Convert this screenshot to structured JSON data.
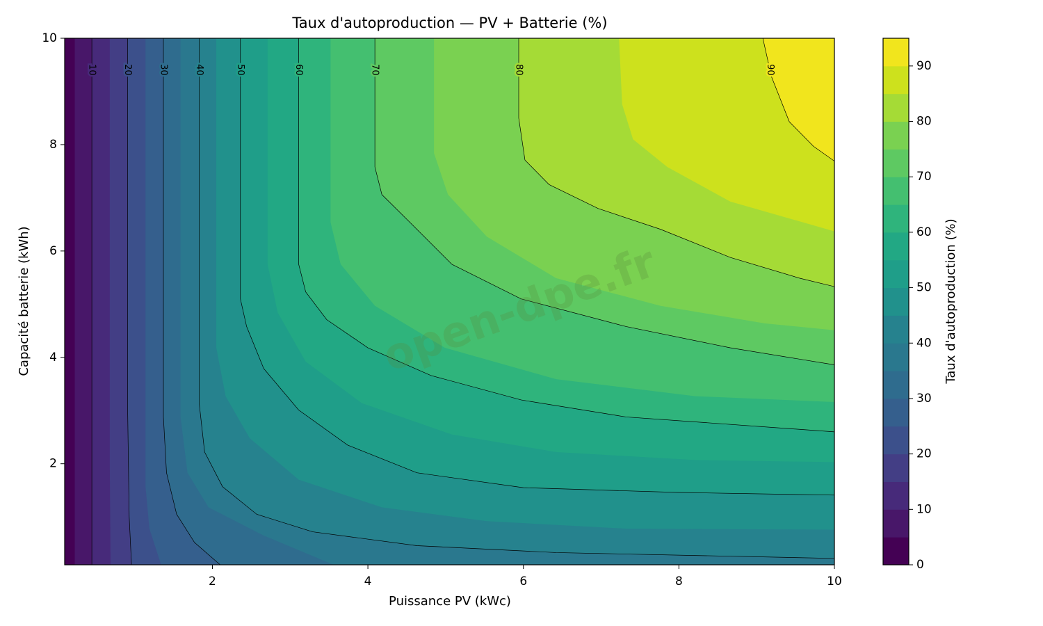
{
  "chart_data": {
    "type": "contourf",
    "title": "Taux d'autoproduction — PV + Batterie (%)",
    "xlabel": "Puissance PV (kWc)",
    "ylabel": "Capacité batterie (kWh)",
    "watermark": "open-dpe.fr",
    "xlim": [
      0.1,
      10
    ],
    "ylim": [
      0.1,
      10
    ],
    "xticks": [
      2,
      4,
      6,
      8,
      10
    ],
    "yticks": [
      2,
      4,
      6,
      8,
      10
    ],
    "contours": [
      {
        "level": 5,
        "line": false,
        "x": [
          0.23,
          0.23
        ],
        "y": [
          10,
          0.1
        ]
      },
      {
        "level": 10,
        "line": true,
        "x": [
          0.45,
          0.45
        ],
        "y": [
          10,
          0.1
        ]
      },
      {
        "level": 15,
        "line": false,
        "x": [
          0.68,
          0.68,
          0.69
        ],
        "y": [
          10,
          2,
          0.1
        ]
      },
      {
        "level": 20,
        "line": true,
        "x": [
          0.91,
          0.91,
          0.93,
          0.96
        ],
        "y": [
          10,
          3,
          1,
          0.1
        ]
      },
      {
        "level": 25,
        "line": false,
        "x": [
          1.14,
          1.14,
          1.19,
          1.34
        ],
        "y": [
          10,
          1.57,
          0.78,
          0.1
        ]
      },
      {
        "level": 30,
        "line": true,
        "x": [
          1.37,
          1.37,
          1.41,
          1.54,
          1.77,
          2.1
        ],
        "y": [
          10,
          2.88,
          1.83,
          1.05,
          0.52,
          0.1
        ]
      },
      {
        "level": 35,
        "line": false,
        "x": [
          1.59,
          1.59,
          1.68,
          1.95,
          2.66,
          3.56
        ],
        "y": [
          10,
          2.88,
          1.83,
          1.18,
          0.65,
          0.1
        ]
      },
      {
        "level": 40,
        "line": true,
        "x": [
          1.83,
          1.83,
          1.9,
          2.13,
          2.57,
          3.29,
          4.63,
          6.42,
          10
        ],
        "y": [
          10,
          3.14,
          2.22,
          1.57,
          1.05,
          0.72,
          0.46,
          0.33,
          0.22
        ]
      },
      {
        "level": 45,
        "line": false,
        "x": [
          2.05,
          2.05,
          2.17,
          2.48,
          3.11,
          4.18,
          5.53,
          7.32,
          10
        ],
        "y": [
          10,
          4.18,
          3.27,
          2.48,
          1.7,
          1.18,
          0.92,
          0.78,
          0.76
        ]
      },
      {
        "level": 50,
        "line": true,
        "x": [
          2.36,
          2.36,
          2.44,
          2.66,
          3.11,
          3.74,
          4.63,
          6.0,
          8.0,
          10
        ],
        "y": [
          10,
          5.1,
          4.58,
          3.79,
          3.01,
          2.35,
          1.83,
          1.55,
          1.46,
          1.41
        ]
      },
      {
        "level": 55,
        "line": false,
        "x": [
          2.71,
          2.71,
          2.84,
          3.2,
          3.92,
          5.08,
          6.42,
          8.21,
          10
        ],
        "y": [
          10,
          5.75,
          4.84,
          3.92,
          3.14,
          2.55,
          2.22,
          2.07,
          2.03
        ]
      },
      {
        "level": 60,
        "line": true,
        "x": [
          3.11,
          3.11,
          3.2,
          3.47,
          4.0,
          4.81,
          5.97,
          7.32,
          10
        ],
        "y": [
          10,
          5.75,
          5.23,
          4.71,
          4.18,
          3.66,
          3.2,
          2.88,
          2.6
        ]
      },
      {
        "level": 65,
        "line": false,
        "x": [
          3.52,
          3.52,
          3.65,
          4.09,
          4.99,
          6.42,
          8.21,
          10
        ],
        "y": [
          10,
          6.54,
          5.75,
          4.97,
          4.18,
          3.59,
          3.27,
          3.16
        ]
      },
      {
        "level": 70,
        "line": true,
        "x": [
          4.09,
          4.09,
          4.18,
          4.54,
          5.08,
          5.97,
          7.32,
          8.66,
          10
        ],
        "y": [
          10,
          7.58,
          7.06,
          6.54,
          5.75,
          5.1,
          4.58,
          4.18,
          3.86
        ]
      },
      {
        "level": 75,
        "line": false,
        "x": [
          4.85,
          4.85,
          5.03,
          5.53,
          6.42,
          7.76,
          9.1,
          10
        ],
        "y": [
          10,
          7.84,
          7.06,
          6.27,
          5.49,
          4.97,
          4.64,
          4.51
        ]
      },
      {
        "level": 80,
        "line": true,
        "x": [
          5.94,
          5.94,
          6.02,
          6.33,
          6.96,
          7.76,
          8.66,
          9.55,
          10
        ],
        "y": [
          10,
          8.5,
          7.71,
          7.25,
          6.8,
          6.41,
          5.88,
          5.49,
          5.33
        ]
      },
      {
        "level": 85,
        "line": false,
        "x": [
          7.23,
          7.27,
          7.41,
          7.85,
          8.66,
          10
        ],
        "y": [
          10,
          8.76,
          8.1,
          7.58,
          6.93,
          6.37
        ]
      },
      {
        "level": 90,
        "line": true,
        "x": [
          9.08,
          9.19,
          9.42,
          9.73,
          10
        ],
        "y": [
          10,
          9.28,
          8.43,
          7.97,
          7.69
        ]
      }
    ],
    "colorbar": {
      "label": "Taux d'autoproduction (%)",
      "levels": [
        0,
        5,
        10,
        15,
        20,
        25,
        30,
        35,
        40,
        45,
        50,
        55,
        60,
        65,
        70,
        75,
        80,
        85,
        90,
        95
      ],
      "colors": [
        "#440154",
        "#481769",
        "#472a7a",
        "#433e85",
        "#3c508b",
        "#355f8d",
        "#2f6c8e",
        "#2a788e",
        "#26828e",
        "#21918c",
        "#1f9e89",
        "#22a884",
        "#2fb47c",
        "#44bf70",
        "#5ec962",
        "#7ad151",
        "#a5db36",
        "#cde11d",
        "#f1e51d"
      ],
      "ticks": [
        0,
        10,
        20,
        30,
        40,
        50,
        60,
        70,
        80,
        90
      ]
    }
  }
}
